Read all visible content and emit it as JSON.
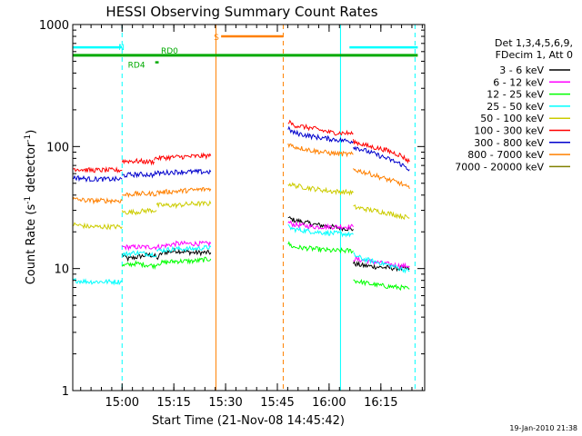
{
  "chart_data": {
    "type": "line",
    "title": "HESSI Observing Summary Count Rates",
    "xlabel": "Start Time (21-Nov-08 14:45:42)",
    "ylabel_main": "Count Rate (s",
    "ylabel_sup1": "-1",
    "ylabel_mid": " detector",
    "ylabel_sup2": "-1",
    "ylabel_end": ")",
    "y_scale": "log",
    "ylim": [
      1,
      1000
    ],
    "xlim_minutes": [
      0,
      102
    ],
    "x_ticks": [
      {
        "label": "15:00",
        "minute": 14.3
      },
      {
        "label": "15:15",
        "minute": 29.3
      },
      {
        "label": "15:30",
        "minute": 44.3
      },
      {
        "label": "15:45",
        "minute": 59.3
      },
      {
        "label": "16:00",
        "minute": 74.3
      },
      {
        "label": "16:15",
        "minute": 89.3
      }
    ],
    "y_ticks": [
      {
        "label": "1",
        "value": 1
      },
      {
        "label": "10",
        "value": 10
      },
      {
        "label": "100",
        "value": 100
      },
      {
        "label": "1000",
        "value": 1000
      }
    ],
    "legend": {
      "header": [
        "Det 1,3,4,5,6,9,",
        "FDecim 1, Att 0"
      ],
      "position": "right"
    },
    "series": [
      {
        "name": "3 - 6 keV",
        "color": "#000000",
        "segments": [
          {
            "x": [
              14.3,
              16,
              22,
              24.3
            ],
            "y": [
              13,
              12,
              13,
              12.5
            ]
          },
          {
            "x": [
              24.3,
              26,
              30,
              35,
              40
            ],
            "y": [
              12,
              13.5,
              14,
              13.5,
              13.5
            ]
          },
          {
            "x": [
              62.4,
              64,
              70,
              75,
              81.3
            ],
            "y": [
              26,
              25,
              23,
              22,
              21
            ]
          },
          {
            "x": [
              81.3,
              84,
              90,
              95,
              97.6
            ],
            "y": [
              11,
              10.6,
              10.2,
              10,
              10
            ]
          }
        ]
      },
      {
        "name": "6 - 12 keV",
        "color": "#ff00ff",
        "segments": [
          {
            "x": [
              14.3,
              18,
              24.3
            ],
            "y": [
              15,
              15,
              15
            ]
          },
          {
            "x": [
              24.3,
              30,
              35,
              40
            ],
            "y": [
              15,
              16,
              16,
              16
            ]
          },
          {
            "x": [
              62.4,
              64,
              70,
              75,
              81.3
            ],
            "y": [
              24,
              23,
              22,
              22,
              22
            ]
          },
          {
            "x": [
              81.3,
              86,
              90,
              95,
              97.6
            ],
            "y": [
              12,
              11.5,
              11,
              10.5,
              10.5
            ]
          }
        ]
      },
      {
        "name": "12 - 25 keV",
        "color": "#00ff00",
        "segments": [
          {
            "x": [
              14.3,
              18,
              24.3
            ],
            "y": [
              10.5,
              11,
              10.5
            ]
          },
          {
            "x": [
              24.3,
              30,
              35,
              40
            ],
            "y": [
              11,
              11.5,
              11.5,
              12
            ]
          },
          {
            "x": [
              62.4,
              64,
              70,
              75,
              81.3
            ],
            "y": [
              16,
              15,
              14.5,
              14,
              14
            ]
          },
          {
            "x": [
              81.3,
              86,
              90,
              95,
              97.6
            ],
            "y": [
              8,
              7.5,
              7.2,
              7,
              6.8
            ]
          }
        ]
      },
      {
        "name": "25 - 50 keV",
        "color": "#00ffff",
        "segments": [
          {
            "x": [
              0,
              5,
              10,
              14.3
            ],
            "y": [
              8,
              7.8,
              7.8,
              7.8
            ]
          },
          {
            "x": [
              14.3,
              18,
              24.3
            ],
            "y": [
              13,
              13.5,
              13
            ]
          },
          {
            "x": [
              24.3,
              30,
              35,
              40
            ],
            "y": [
              14,
              14.5,
              14.5,
              15
            ]
          },
          {
            "x": [
              62.4,
              64,
              70,
              75,
              81.3
            ],
            "y": [
              22,
              21,
              20,
              19.5,
              19
            ]
          },
          {
            "x": [
              81.3,
              84,
              90,
              95,
              97.6
            ],
            "y": [
              13,
              12,
              11,
              10,
              9.5
            ]
          }
        ]
      },
      {
        "name": "50 - 100 keV",
        "color": "#cccc00",
        "segments": [
          {
            "x": [
              0,
              5,
              10,
              14.3
            ],
            "y": [
              23,
              22,
              22,
              22
            ]
          },
          {
            "x": [
              14.3,
              18,
              22,
              24.3
            ],
            "y": [
              29,
              29,
              30,
              30
            ]
          },
          {
            "x": [
              24.3,
              30,
              35,
              40
            ],
            "y": [
              33,
              33,
              34,
              34
            ]
          },
          {
            "x": [
              62.4,
              64,
              70,
              75,
              81.3
            ],
            "y": [
              50,
              48,
              45,
              43,
              42
            ]
          },
          {
            "x": [
              81.3,
              84,
              90,
              95,
              97.6
            ],
            "y": [
              32,
              31,
              29,
              27,
              26
            ]
          }
        ]
      },
      {
        "name": "100 - 300 keV",
        "color": "#ff0000",
        "segments": [
          {
            "x": [
              0,
              5,
              10,
              14.3
            ],
            "y": [
              66,
              64,
              64,
              64
            ]
          },
          {
            "x": [
              14.3,
              18,
              22,
              23.6
            ],
            "y": [
              76,
              76,
              75,
              75
            ]
          },
          {
            "x": [
              23.6,
              30,
              35,
              40
            ],
            "y": [
              80,
              82,
              83,
              84
            ]
          },
          {
            "x": [
              62.4,
              64,
              70,
              75,
              81.3
            ],
            "y": [
              160,
              150,
              140,
              130,
              128
            ]
          },
          {
            "x": [
              81.3,
              86,
              90,
              95,
              97.6
            ],
            "y": [
              110,
              100,
              95,
              85,
              75
            ]
          }
        ]
      },
      {
        "name": "300 - 800 keV",
        "color": "#0000cc",
        "segments": [
          {
            "x": [
              0,
              5,
              10,
              14.3
            ],
            "y": [
              56,
              54,
              54,
              54
            ]
          },
          {
            "x": [
              14.3,
              18,
              22,
              23.6
            ],
            "y": [
              58,
              59,
              59,
              58
            ]
          },
          {
            "x": [
              23.6,
              30,
              35,
              40
            ],
            "y": [
              60,
              62,
              62,
              62
            ]
          },
          {
            "x": [
              62.4,
              64,
              70,
              75,
              81.3
            ],
            "y": [
              140,
              130,
              120,
              115,
              110
            ]
          },
          {
            "x": [
              81.3,
              86,
              90,
              95,
              97.6
            ],
            "y": [
              100,
              90,
              82,
              72,
              65
            ]
          }
        ]
      },
      {
        "name": "800 - 7000 keV",
        "color": "#ff8000",
        "segments": [
          {
            "x": [
              0,
              5,
              10,
              14.3
            ],
            "y": [
              37,
              36,
              36,
              36
            ]
          },
          {
            "x": [
              14.3,
              18,
              22,
              24.3
            ],
            "y": [
              40,
              41,
              41,
              41
            ]
          },
          {
            "x": [
              24.3,
              30,
              35,
              40
            ],
            "y": [
              42,
              43,
              44,
              45
            ]
          },
          {
            "x": [
              62.4,
              64,
              70,
              75,
              81.3
            ],
            "y": [
              105,
              100,
              92,
              88,
              86
            ]
          },
          {
            "x": [
              81.3,
              86,
              90,
              95,
              97.6
            ],
            "y": [
              65,
              60,
              55,
              50,
              45
            ]
          }
        ]
      },
      {
        "name": "7000 - 20000 keV",
        "color": "#808000",
        "segments": [
          {
            "x": [
              0,
              14.3
            ],
            "y": [
              1,
              1
            ]
          },
          {
            "x": [
              14.3,
              24.3
            ],
            "y": [
              1,
              1
            ]
          },
          {
            "x": [
              24.3,
              40.1
            ],
            "y": [
              1,
              1
            ]
          },
          {
            "x": [
              62.4,
              81.3
            ],
            "y": [
              1,
              1
            ]
          },
          {
            "x": [
              81.3,
              97.6
            ],
            "y": [
              1,
              1
            ]
          }
        ]
      }
    ],
    "flags": [
      {
        "label": "N",
        "color": "#00ffff",
        "y": 650,
        "segments": [
          [
            0,
            14.3
          ],
          [
            80.2,
            100
          ]
        ]
      },
      {
        "label": "S",
        "color": "#ff8000",
        "y": 800,
        "segments": [
          [
            43,
            61
          ]
        ]
      },
      {
        "label": "RD0",
        "color": "#00aa00",
        "y": 560,
        "segments": [
          [
            0,
            100
          ]
        ]
      },
      {
        "label": "RD4",
        "color": "#00aa00",
        "y": 490,
        "segments": [
          [
            23.9,
            24.9
          ]
        ]
      }
    ],
    "vertical_markers": [
      {
        "minute": 0,
        "style": "solid",
        "color": "#00ffff"
      },
      {
        "minute": 14.3,
        "style": "dashed",
        "color": "#00ffff"
      },
      {
        "minute": 41.5,
        "style": "solid",
        "color": "#ff8000"
      },
      {
        "minute": 61,
        "style": "dashed",
        "color": "#ff8000"
      },
      {
        "minute": 77.6,
        "style": "solid",
        "color": "#00ffff"
      },
      {
        "minute": 99.2,
        "style": "dashed",
        "color": "#00ffff"
      }
    ],
    "timestamp": "19-Jan-2010 21:38"
  }
}
